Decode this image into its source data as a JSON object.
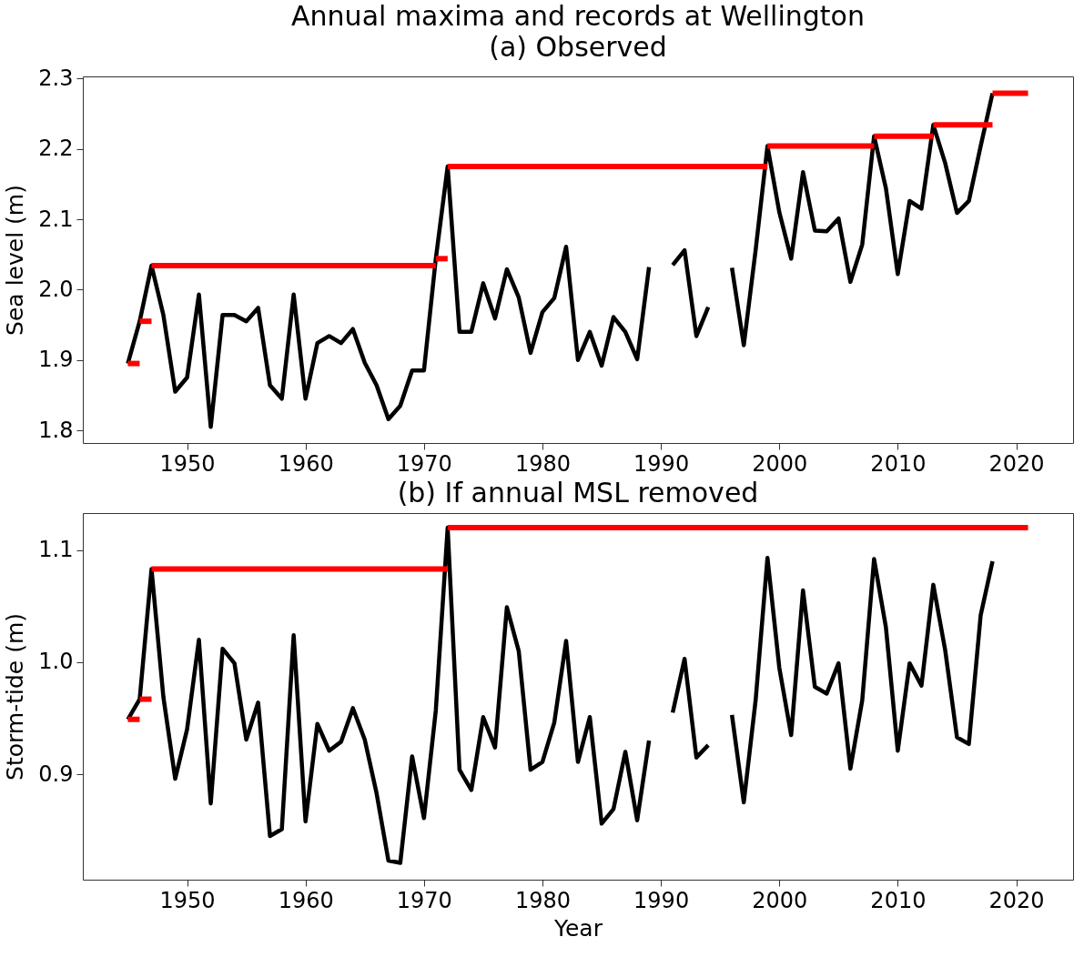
{
  "chart_data": [
    {
      "type": "line",
      "title": "Annual maxima and records at Wellington",
      "subtitle": "(a) Observed",
      "ylabel": "Sea level (m)",
      "xlim": [
        1941.2,
        2024.8
      ],
      "xticks": [
        1950,
        1960,
        1970,
        1980,
        1990,
        2000,
        2010,
        2020
      ],
      "ylim": [
        1.782,
        2.303
      ],
      "yticks": [
        1.8,
        1.9,
        {
          "value": 2,
          "label": "2.0"
        },
        2.1,
        2.2,
        2.3
      ],
      "grid": false,
      "line_style": "solid",
      "marker": "none",
      "series": [
        {
          "type": "line",
          "color": "#000000",
          "x": [
            1945,
            1946,
            1947,
            1948,
            1949,
            1950,
            1951,
            1952,
            1953,
            1954,
            1955,
            1956,
            1957,
            1958,
            1959,
            1960,
            1961,
            1962,
            1963,
            1964,
            1965,
            1966,
            1967,
            1968,
            1969,
            1970,
            1971,
            1972,
            1973,
            1974,
            1975,
            1976,
            1977,
            1978,
            1979,
            1980,
            1981,
            1982,
            1983,
            1984,
            1985,
            1986,
            1987,
            1988,
            1989,
            1990,
            1991,
            1992,
            1993,
            1994,
            1995,
            1996,
            1997,
            1998,
            1999,
            2000,
            2001,
            2002,
            2003,
            2004,
            2005,
            2006,
            2007,
            2008,
            2009,
            2010,
            2011,
            2012,
            2013,
            2014,
            2015,
            2016,
            2017,
            2018
          ],
          "values": [
            1.895,
            1.955,
            2.034,
            1.964,
            1.855,
            1.875,
            1.993,
            1.805,
            1.964,
            1.964,
            1.955,
            1.974,
            1.864,
            1.845,
            1.993,
            1.845,
            1.924,
            1.934,
            1.924,
            1.944,
            1.896,
            1.864,
            1.816,
            1.835,
            1.885,
            1.885,
            2.044,
            2.175,
            1.94,
            1.94,
            2.009,
            1.959,
            2.029,
            1.989,
            1.91,
            1.968,
            1.988,
            2.061,
            1.9,
            1.94,
            1.892,
            1.961,
            1.94,
            1.901,
            2.032,
            null,
            2.035,
            2.056,
            1.934,
            1.975,
            null,
            2.031,
            1.921,
            2.056,
            2.204,
            2.11,
            2.044,
            2.167,
            2.084,
            2.083,
            2.101,
            2.011,
            2.064,
            2.218,
            2.144,
            2.022,
            2.126,
            2.115,
            2.234,
            2.18,
            2.109,
            2.126,
            2.204,
            2.279
          ]
        },
        {
          "type": "step",
          "color": "#ff0000",
          "x": [
            1945,
            1946,
            1947,
            1971,
            1972,
            1999,
            2008,
            2013,
            2018,
            2021
          ],
          "values": [
            1.895,
            1.955,
            2.034,
            2.044,
            2.175,
            2.204,
            2.218,
            2.234,
            2.279,
            2.279
          ]
        }
      ]
    },
    {
      "type": "line",
      "title": "(b) If annual MSL removed",
      "xlabel": "Year",
      "ylabel": "Storm-tide (m)",
      "xlim": [
        1941.2,
        2024.8
      ],
      "xticks": [
        1950,
        1960,
        1970,
        1980,
        1990,
        2000,
        2010,
        2020
      ],
      "ylim": [
        0.806,
        1.133
      ],
      "yticks": [
        0.9,
        {
          "value": 1,
          "label": "1.0"
        },
        1.1
      ],
      "grid": false,
      "line_style": "solid",
      "marker": "none",
      "series": [
        {
          "type": "line",
          "color": "#000000",
          "x": [
            1945,
            1946,
            1947,
            1948,
            1949,
            1950,
            1951,
            1952,
            1953,
            1954,
            1955,
            1956,
            1957,
            1958,
            1959,
            1960,
            1961,
            1962,
            1963,
            1964,
            1965,
            1966,
            1967,
            1968,
            1969,
            1970,
            1971,
            1972,
            1973,
            1974,
            1975,
            1976,
            1977,
            1978,
            1979,
            1980,
            1981,
            1982,
            1983,
            1984,
            1985,
            1986,
            1987,
            1988,
            1989,
            1990,
            1991,
            1992,
            1993,
            1994,
            1995,
            1996,
            1997,
            1998,
            1999,
            2000,
            2001,
            2002,
            2003,
            2004,
            2005,
            2006,
            2007,
            2008,
            2009,
            2010,
            2011,
            2012,
            2013,
            2014,
            2015,
            2016,
            2017,
            2018
          ],
          "values": [
            0.949,
            0.967,
            1.083,
            0.969,
            0.896,
            0.94,
            1.02,
            0.874,
            1.012,
            0.999,
            0.931,
            0.964,
            0.845,
            0.851,
            1.024,
            0.858,
            0.945,
            0.921,
            0.929,
            0.959,
            0.931,
            0.883,
            0.823,
            0.821,
            0.916,
            0.861,
            0.957,
            1.12,
            0.904,
            0.886,
            0.951,
            0.924,
            1.049,
            1.01,
            0.904,
            0.911,
            0.946,
            1.019,
            0.911,
            0.951,
            0.856,
            0.869,
            0.92,
            0.859,
            0.93,
            null,
            0.955,
            1.003,
            0.915,
            0.926,
            null,
            0.953,
            0.875,
            0.966,
            1.093,
            0.995,
            0.935,
            1.064,
            0.978,
            0.972,
            0.999,
            0.905,
            0.966,
            1.092,
            1.031,
            0.921,
            0.999,
            0.979,
            1.069,
            1.011,
            0.933,
            0.927,
            1.042,
            1.09
          ]
        },
        {
          "type": "step",
          "color": "#ff0000",
          "x": [
            1945,
            1946,
            1947,
            1972,
            2021
          ],
          "values": [
            0.949,
            0.967,
            1.083,
            1.12,
            1.12
          ]
        }
      ]
    }
  ]
}
